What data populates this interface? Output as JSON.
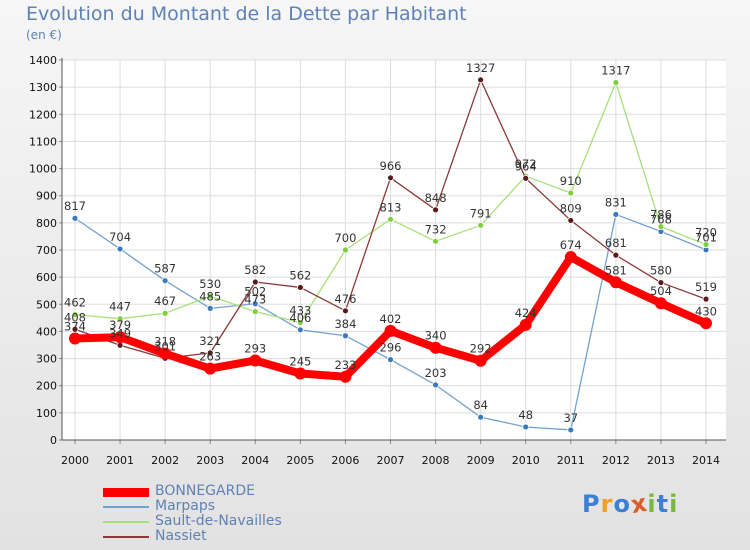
{
  "chart_data": {
    "type": "line",
    "title": "Evolution du Montant de la Dette par Habitant",
    "subtitle": "(en €)",
    "xlabel": "",
    "ylabel": "",
    "ylim": [
      0,
      1400
    ],
    "y_ticks": [
      "0",
      "100",
      "200",
      "300",
      "400",
      "500",
      "600",
      "700",
      "800",
      "900",
      "1000",
      "1100",
      "1200",
      "1300",
      "1400"
    ],
    "categories": [
      "2000",
      "2001",
      "2002",
      "2003",
      "2004",
      "2005",
      "2006",
      "2007",
      "2008",
      "2009",
      "2010",
      "2011",
      "2012",
      "2013",
      "2014"
    ],
    "grid": true,
    "legend_position": "bottom-left",
    "series": [
      {
        "name": "BONNEGARDE",
        "color": "#ff0000",
        "marker": "#ff0000",
        "values": [
          374,
          379,
          318,
          263,
          293,
          245,
          233,
          402,
          340,
          292,
          424,
          674,
          581,
          504,
          430
        ]
      },
      {
        "name": "Marpaps",
        "color": "#74a2cf",
        "marker": "#3a7abd",
        "values": [
          817,
          704,
          587,
          485,
          502,
          406,
          384,
          296,
          203,
          84,
          48,
          37,
          831,
          768,
          701
        ]
      },
      {
        "name": "Sault-de-Navailles",
        "color": "#a8e078",
        "marker": "#7ecf3c",
        "values": [
          462,
          447,
          467,
          530,
          473,
          433,
          700,
          813,
          732,
          791,
          972,
          910,
          1317,
          786,
          720
        ]
      },
      {
        "name": "Nassiet",
        "color": "#8b3a3a",
        "marker": "#5a1a1a",
        "values": [
          408,
          349,
          301,
          321,
          582,
          562,
          476,
          966,
          848,
          1327,
          964,
          809,
          681,
          580,
          519
        ]
      }
    ]
  },
  "logo": {
    "text": "Proxiti",
    "letters": [
      {
        "ch": "P",
        "color": "#3d7fd1"
      },
      {
        "ch": "r",
        "color": "#f0a020"
      },
      {
        "ch": "o",
        "color": "#3d7fd1"
      },
      {
        "ch": "x",
        "color": "#e05a2a"
      },
      {
        "ch": "i",
        "color": "#7ab83c"
      },
      {
        "ch": "t",
        "color": "#3d7fd1"
      },
      {
        "ch": "i",
        "color": "#7ab83c"
      }
    ]
  }
}
